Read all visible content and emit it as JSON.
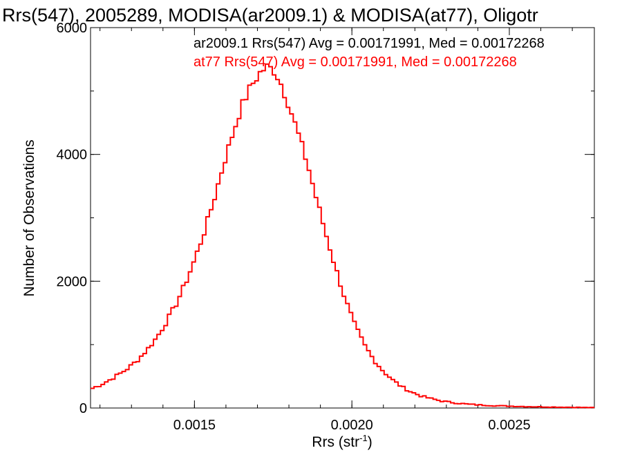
{
  "chart_data": {
    "type": "histogram",
    "title": "Rrs(547), 2005289, MODISA(ar2009.1) & MODISA(at77), Oligotr",
    "xlabel_main": "Rrs (str",
    "xlabel_sup": "-1",
    "xlabel_close": ")",
    "ylabel": "Number of Observations",
    "xlim": [
      0.00117,
      0.00277
    ],
    "ylim": [
      0,
      6000
    ],
    "x_ticks": [
      {
        "value": 0.0015,
        "label": "0.0015"
      },
      {
        "value": 0.002,
        "label": "0.0020"
      },
      {
        "value": 0.0025,
        "label": "0.0025"
      }
    ],
    "y_ticks": [
      {
        "value": 0,
        "label": "0"
      },
      {
        "value": 2000,
        "label": "2000"
      },
      {
        "value": 4000,
        "label": "4000"
      },
      {
        "value": 6000,
        "label": "6000"
      }
    ],
    "x_minor_step": 0.0001,
    "y_minor_step": 1000,
    "bin_width": 1.11e-05,
    "annotations": [
      {
        "text": "ar2009.1 Rrs(547) Avg = 0.00171991, Med = 0.00172268",
        "color": "#000000"
      },
      {
        "text": "at77 Rrs(547) Avg = 0.00171991, Med = 0.00172268",
        "color": "#ff0000"
      }
    ],
    "series": [
      {
        "name": "at77",
        "color": "#ff0000",
        "note": "histogram counts (approx.) per bin, read from curve",
        "x": [
          0.00117,
          0.0012,
          0.00123,
          0.00126,
          0.00129,
          0.00132,
          0.00135,
          0.00138,
          0.00141,
          0.00144,
          0.00147,
          0.0015,
          0.00153,
          0.00156,
          0.00159,
          0.00162,
          0.00165,
          0.00168,
          0.00171,
          0.00173,
          0.00175,
          0.00177,
          0.0018,
          0.00183,
          0.00186,
          0.00189,
          0.00192,
          0.00195,
          0.00198,
          0.00201,
          0.00204,
          0.00207,
          0.0021,
          0.00213,
          0.00216,
          0.00219,
          0.00222,
          0.00225,
          0.00228,
          0.00231,
          0.00234,
          0.00237,
          0.0024,
          0.00243,
          0.00246,
          0.00249,
          0.00252,
          0.00255,
          0.00258,
          0.00261,
          0.00264,
          0.00267,
          0.0027,
          0.00273,
          0.00276
        ],
        "y": [
          300,
          360,
          440,
          530,
          630,
          760,
          920,
          1110,
          1350,
          1620,
          1950,
          2330,
          2760,
          3250,
          3800,
          4300,
          4760,
          5080,
          5300,
          5380,
          5340,
          5180,
          4780,
          4320,
          3830,
          3250,
          2700,
          2180,
          1700,
          1300,
          990,
          760,
          580,
          440,
          330,
          250,
          190,
          150,
          115,
          92,
          74,
          60,
          50,
          42,
          36,
          31,
          27,
          23,
          20,
          17,
          15,
          13,
          11,
          9,
          7
        ]
      }
    ]
  }
}
